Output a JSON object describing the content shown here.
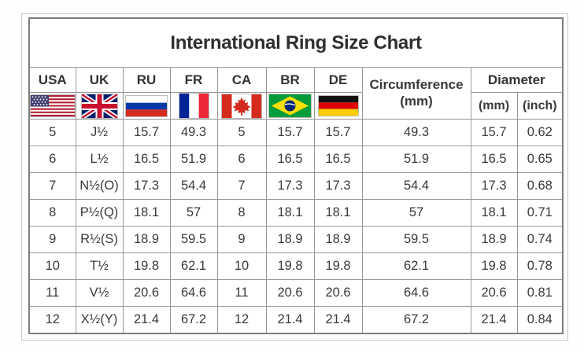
{
  "header": {
    "title": "International Ring Size Chart"
  },
  "columns": {
    "usa": "USA",
    "uk": "UK",
    "ru": "RU",
    "fr": "FR",
    "ca": "CA",
    "br": "BR",
    "de": "DE",
    "circumference_line1": "Circumference",
    "circumference_line2": "(mm)",
    "diameter": "Diameter",
    "diameter_mm": "(mm)",
    "diameter_inch": "(inch)"
  },
  "icons": [
    "usa-flag-icon",
    "uk-flag-icon",
    "russia-flag-icon",
    "france-flag-icon",
    "canada-flag-icon",
    "brazil-flag-icon",
    "germany-flag-icon"
  ],
  "colors": {
    "frame_border": "#c9c9c9",
    "table_border": "#7d7d7d",
    "cell_border": "#979797",
    "text": "#3a3a3a",
    "background": "#ffffff"
  },
  "chart_data": {
    "type": "table",
    "title": "International Ring Size Chart",
    "column_headers": [
      "USA",
      "UK",
      "RU",
      "FR",
      "CA",
      "BR",
      "DE",
      "Circumference (mm)",
      "Diameter (mm)",
      "Diameter (inch)"
    ],
    "column_keys": [
      "usa",
      "uk",
      "ru",
      "fr",
      "ca",
      "br",
      "de",
      "circumference_mm",
      "diameter_mm",
      "diameter_inch"
    ],
    "rows": [
      [
        "5",
        "J½",
        "15.7",
        "49.3",
        "5",
        "15.7",
        "15.7",
        "49.3",
        "15.7",
        "0.62"
      ],
      [
        "6",
        "L½",
        "16.5",
        "51.9",
        "6",
        "16.5",
        "16.5",
        "51.9",
        "16.5",
        "0.65"
      ],
      [
        "7",
        "N½(O)",
        "17.3",
        "54.4",
        "7",
        "17.3",
        "17.3",
        "54.4",
        "17.3",
        "0.68"
      ],
      [
        "8",
        "P½(Q)",
        "18.1",
        "57",
        "8",
        "18.1",
        "18.1",
        "57",
        "18.1",
        "0.71"
      ],
      [
        "9",
        "R½(S)",
        "18.9",
        "59.5",
        "9",
        "18.9",
        "18.9",
        "59.5",
        "18.9",
        "0.74"
      ],
      [
        "10",
        "T½",
        "19.8",
        "62.1",
        "10",
        "19.8",
        "19.8",
        "62.1",
        "19.8",
        "0.78"
      ],
      [
        "11",
        "V½",
        "20.6",
        "64.6",
        "11",
        "20.6",
        "20.6",
        "64.6",
        "20.6",
        "0.81"
      ],
      [
        "12",
        "X½(Y)",
        "21.4",
        "67.2",
        "12",
        "21.4",
        "21.4",
        "67.2",
        "21.4",
        "0.84"
      ]
    ]
  }
}
